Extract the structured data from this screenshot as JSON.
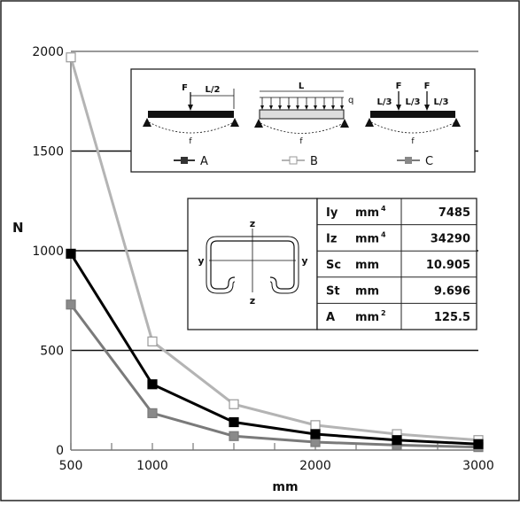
{
  "chart_data": {
    "type": "line",
    "ylabel": "N",
    "xlabel": "mm",
    "x_ticks": [
      "500",
      "1000",
      "2000",
      "3000"
    ],
    "y_ticks": [
      "0",
      "500",
      "1000",
      "1500",
      "2000"
    ],
    "xlim": [
      500,
      3000
    ],
    "ylim": [
      0,
      2000
    ],
    "grid": "horizontal",
    "legend_position": "top, inside diagram box",
    "series": [
      {
        "name": "A",
        "color": "#000000",
        "x": [
          500,
          1000,
          1500,
          2000,
          2500,
          3000
        ],
        "y": [
          985,
          330,
          140,
          80,
          50,
          30
        ]
      },
      {
        "name": "B",
        "color": "#b4b4b4",
        "x": [
          500,
          1000,
          1500,
          2000,
          2500,
          3000
        ],
        "y": [
          1970,
          545,
          230,
          125,
          80,
          50
        ]
      },
      {
        "name": "C",
        "color": "#7a7a7a",
        "x": [
          500,
          1000,
          1500,
          2000,
          2500,
          3000
        ],
        "y": [
          730,
          185,
          70,
          40,
          25,
          15
        ]
      }
    ]
  },
  "load_cases": {
    "A": {
      "force": "F",
      "dim": "L/2",
      "deflection": "f"
    },
    "B": {
      "length": "L",
      "load": "q",
      "deflection": "f"
    },
    "C": {
      "force_1": "F",
      "force_2": "F",
      "dims": [
        "L/3",
        "L/3",
        "L/3"
      ],
      "deflection": "f"
    }
  },
  "section": {
    "axis_z_top": "z",
    "axis_z_bottom": "z",
    "axis_y_left": "y",
    "axis_y_right": "y",
    "properties": [
      {
        "symbol": "Iy",
        "unit": "mm",
        "sup": "4",
        "value": "7485"
      },
      {
        "symbol": "Iz",
        "unit": "mm",
        "sup": "4",
        "value": "34290"
      },
      {
        "symbol": "Sc",
        "unit": "mm",
        "sup": "",
        "value": "10.905"
      },
      {
        "symbol": "St",
        "unit": "mm",
        "sup": "",
        "value": "9.696"
      },
      {
        "symbol": "A",
        "unit": "mm",
        "sup": "2",
        "value": "125.5"
      }
    ]
  }
}
